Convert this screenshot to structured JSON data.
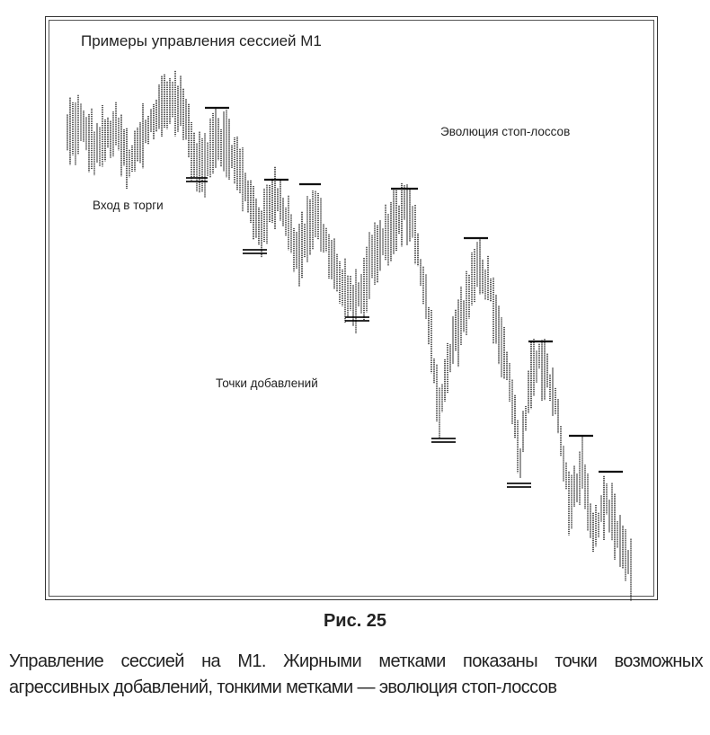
{
  "chart_data": {
    "type": "bar",
    "subtype": "price-bars",
    "title": "Примеры управления сессией М1",
    "annotations": [
      "Эволюция стоп-лоссов",
      "Вход в торги",
      "Точки добавлений"
    ],
    "grid": false,
    "axes_shown": false,
    "price_path_keypoints": [
      [
        0,
        110
      ],
      [
        5,
        112
      ],
      [
        10,
        107
      ],
      [
        18,
        111
      ],
      [
        23,
        103
      ],
      [
        28,
        110
      ],
      [
        37,
        118
      ],
      [
        43,
        116
      ],
      [
        47,
        104
      ],
      [
        50,
        103
      ],
      [
        55,
        110
      ],
      [
        62,
        105
      ],
      [
        67,
        96
      ],
      [
        72,
        89
      ],
      [
        77,
        97
      ],
      [
        80,
        94
      ],
      [
        85,
        83
      ],
      [
        92,
        93
      ],
      [
        97,
        84
      ],
      [
        103,
        74
      ],
      [
        108,
        73
      ],
      [
        113,
        82
      ],
      [
        118,
        87
      ],
      [
        125,
        94
      ],
      [
        128,
        90
      ],
      [
        133,
        74
      ],
      [
        138,
        48
      ],
      [
        143,
        64
      ],
      [
        148,
        72
      ],
      [
        152,
        81
      ],
      [
        157,
        76
      ],
      [
        160,
        64
      ],
      [
        163,
        58
      ],
      [
        168,
        38
      ],
      [
        172,
        56
      ],
      [
        175,
        60
      ],
      [
        178,
        57
      ],
      [
        182,
        48
      ],
      [
        186,
        28
      ],
      [
        191,
        36
      ],
      [
        195,
        22
      ],
      [
        200,
        28
      ],
      [
        205,
        20
      ],
      [
        209,
        13
      ]
    ],
    "stop_loss_marks": [
      [
        51,
        60,
        116
      ],
      [
        73,
        82,
        100
      ],
      [
        86,
        94,
        99
      ],
      [
        120,
        130,
        98
      ],
      [
        147,
        156,
        87
      ],
      [
        171,
        180,
        64
      ],
      [
        186,
        195,
        43
      ],
      [
        197,
        206,
        35
      ]
    ],
    "add_point_marks": [
      [
        44,
        52,
        100
      ],
      [
        65,
        74,
        84
      ],
      [
        103,
        112,
        69
      ],
      [
        135,
        144,
        42
      ],
      [
        163,
        172,
        32
      ]
    ],
    "colors": {
      "bars": "#333333",
      "marks": "#111111"
    }
  },
  "figure_label": "Рис. 25",
  "caption": "Управление сессией на М1. Жирными метками показаны точки возможных агрессивных добавлений, тонкими метками — эволюция стоп-лоссов"
}
